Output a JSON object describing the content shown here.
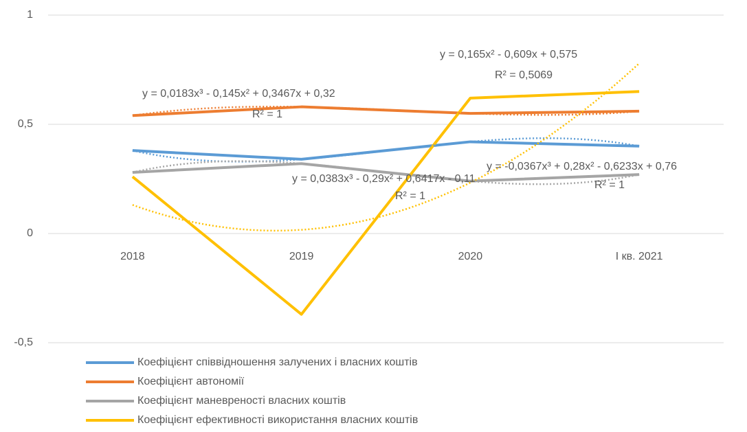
{
  "chart_data": {
    "type": "line",
    "categories": [
      "2018",
      "2019",
      "2020",
      "I кв. 2021"
    ],
    "ylim": [
      -0.5,
      1
    ],
    "yticks": [
      {
        "value": -0.5,
        "label": "-0,5"
      },
      0,
      {
        "value": 0.5,
        "label": "0,5"
      },
      1
    ],
    "grid": true,
    "legend": "bottom",
    "series": [
      {
        "name": "Коефіцієнт співвідношення залучених і власних коштів",
        "color": "#5b9bd5",
        "values": [
          0.38,
          0.34,
          0.42,
          0.4
        ],
        "trendline": {
          "order": 3,
          "equation": "y = -0,0367x³ + 0,28x² - 0,6233x + 0,76",
          "r_squared": "R² = 1"
        }
      },
      {
        "name": "Коефіцієнт автономії",
        "color": "#ed7d31",
        "values": [
          0.54,
          0.58,
          0.55,
          0.56
        ],
        "trendline": {
          "order": 3,
          "equation": "y = 0,0183x³ - 0,145x² + 0,3467x + 0,32",
          "r_squared": "R² = 1"
        }
      },
      {
        "name": "Коефіцієнт маневреності власних коштів",
        "color": "#a5a5a5",
        "values": [
          0.28,
          0.32,
          0.24,
          0.27
        ],
        "trendline": {
          "order": 3,
          "equation": "y = 0,0383x³ - 0,29x² + 0,6417x - 0,11",
          "r_squared": "R² = 1"
        }
      },
      {
        "name": "Коефіцієнт ефективності використання власних коштів",
        "color": "#ffc000",
        "values": [
          0.26,
          -0.37,
          0.62,
          0.65
        ],
        "trendline": {
          "order": 2,
          "equation": "y = 0,165x² - 0,609x + 0,575",
          "r_squared": "R² = 0,5069"
        }
      }
    ]
  }
}
